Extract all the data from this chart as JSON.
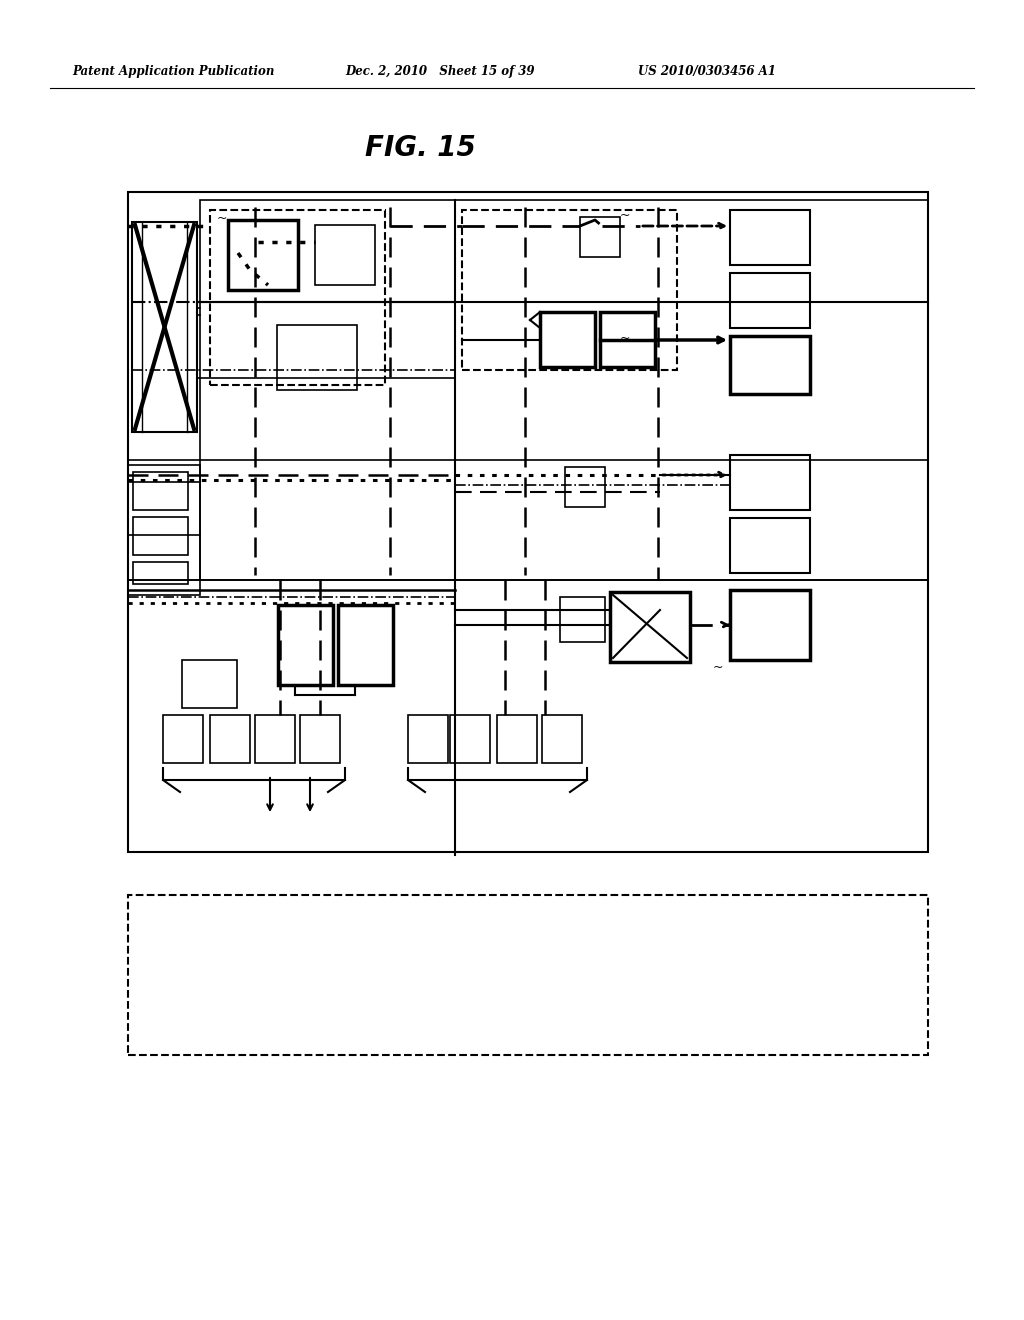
{
  "title": "FIG. 15",
  "header_left": "Patent Application Publication",
  "header_mid": "Dec. 2, 2010   Sheet 15 of 39",
  "header_right": "US 2010/0303456 A1",
  "bg_color": "#ffffff",
  "line_color": "#000000",
  "fig_width": 10.24,
  "fig_height": 13.2
}
